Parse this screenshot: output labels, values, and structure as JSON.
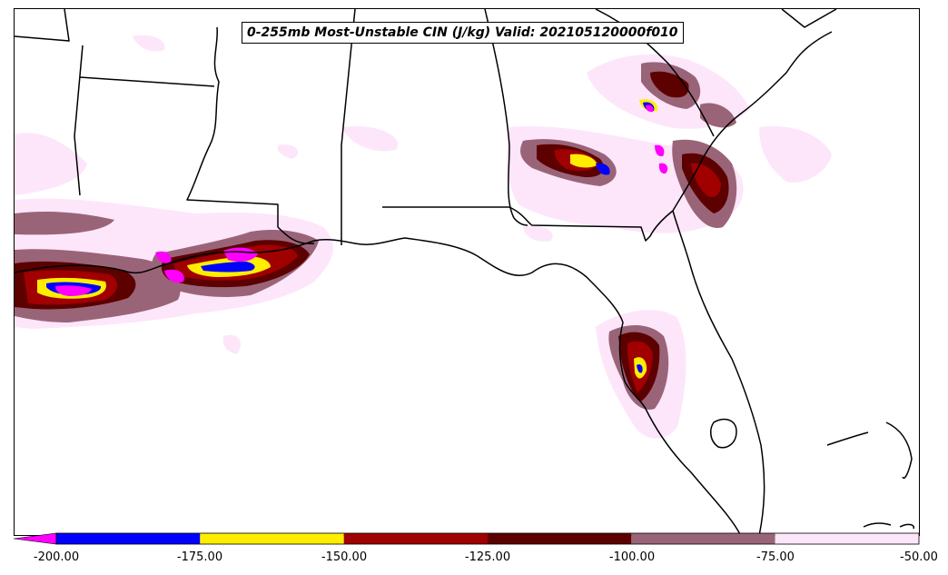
{
  "title": "0-255mb Most-Unstable CIN (J/kg) Valid: 202105120000f010",
  "colorbar": {
    "underflow_color": "#ff00ff",
    "bins": [
      {
        "from": -200,
        "to": -175,
        "color": "#0000ff"
      },
      {
        "from": -175,
        "to": -150,
        "color": "#ffee00"
      },
      {
        "from": -150,
        "to": -125,
        "color": "#a00000"
      },
      {
        "from": -125,
        "to": -100,
        "color": "#5c0000"
      },
      {
        "from": -100,
        "to": -75,
        "color": "#9a6478"
      },
      {
        "from": -75,
        "to": -50,
        "color": "#fde6fa"
      }
    ],
    "tick_labels": [
      "-200.00",
      "-175.00",
      "-150.00",
      "-125.00",
      "-100.00",
      "-75.00",
      "-50.00"
    ]
  }
}
